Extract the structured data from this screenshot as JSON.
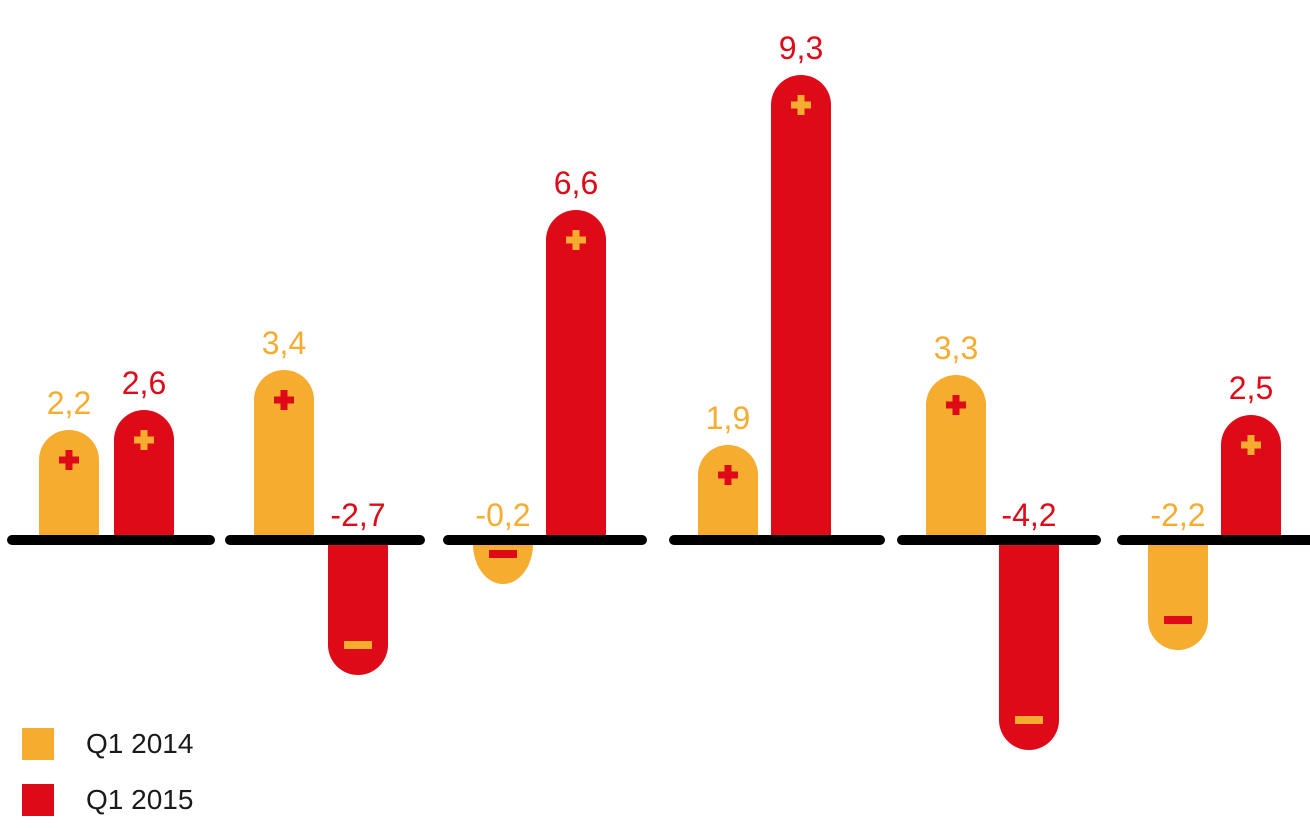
{
  "chart_data": {
    "type": "bar",
    "colors": {
      "Q1 2014": "#F5AC2F",
      "Q1 2015": "#DE0A18",
      "baseline": "#000000"
    },
    "groups": [
      {
        "values": [
          2.2,
          2.6
        ],
        "labels": [
          "2,2",
          "2,6"
        ]
      },
      {
        "values": [
          3.4,
          -2.7
        ],
        "labels": [
          "3,4",
          "-2,7"
        ]
      },
      {
        "values": [
          -0.2,
          6.6
        ],
        "labels": [
          "-0,2",
          "6,6"
        ]
      },
      {
        "values": [
          1.9,
          9.3
        ],
        "labels": [
          "1,9",
          "9,3"
        ]
      },
      {
        "values": [
          3.3,
          -4.2
        ],
        "labels": [
          "3,3",
          "-4,2"
        ]
      },
      {
        "values": [
          -2.2,
          2.5
        ],
        "labels": [
          "-2,2",
          "2,5"
        ]
      }
    ],
    "series": [
      {
        "name": "Q1 2014",
        "values": [
          2.2,
          3.4,
          -0.2,
          1.9,
          3.3,
          -2.2
        ]
      },
      {
        "name": "Q1 2015",
        "values": [
          2.6,
          -2.7,
          6.6,
          9.3,
          -4.2,
          2.5
        ]
      }
    ],
    "legend": {
      "placement": "bottom-left",
      "items": [
        "Q1 2014",
        "Q1 2015"
      ]
    }
  }
}
